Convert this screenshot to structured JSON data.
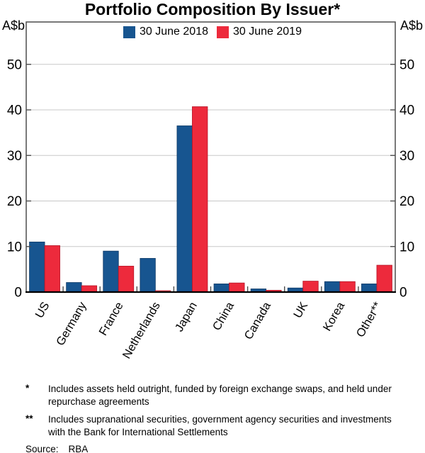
{
  "title": "Portfolio Composition By Issuer*",
  "axis_units": {
    "left": "A$b",
    "right": "A$b"
  },
  "legend": {
    "items": [
      {
        "label": "30 June 2018",
        "color": "#175590"
      },
      {
        "label": "30 June 2019",
        "color": "#ed2a3c"
      }
    ]
  },
  "chart_data": {
    "type": "bar",
    "title": "Portfolio Composition By Issuer*",
    "categories": [
      "US",
      "Germany",
      "France",
      "Netherlands",
      "Japan",
      "China",
      "Canada",
      "UK",
      "Korea",
      "Other**"
    ],
    "series": [
      {
        "name": "30 June 2018",
        "color": "#175590",
        "edge_color": "#0e3a66",
        "values": [
          11.0,
          2.1,
          9.0,
          7.4,
          36.5,
          1.8,
          0.7,
          0.9,
          2.3,
          1.8
        ]
      },
      {
        "name": "30 June 2019",
        "color": "#ed2a3c",
        "edge_color": "#b51527",
        "values": [
          10.2,
          1.4,
          5.7,
          0.3,
          40.7,
          2.0,
          0.4,
          2.4,
          2.3,
          5.9
        ]
      }
    ],
    "ylabel": "A$b",
    "xlabel": "",
    "yticks": [
      0,
      10,
      20,
      30,
      40,
      50
    ],
    "ylim": [
      0,
      59.3
    ],
    "grid": true,
    "gridline_color": "#c8c8c8",
    "frame_color": "#4d4d4d",
    "baseline_color": "#000000",
    "legend_position": "top-center",
    "category_label_angle": -60
  },
  "footnotes": [
    {
      "marker": "*",
      "text": "Includes assets held outright, funded by foreign exchange swaps, and held under repurchase agreements"
    },
    {
      "marker": "**",
      "text": "Includes supranational securities, government agency securities and investments with the Bank for International Settlements"
    }
  ],
  "source": {
    "label": "Source:",
    "value": "RBA"
  }
}
